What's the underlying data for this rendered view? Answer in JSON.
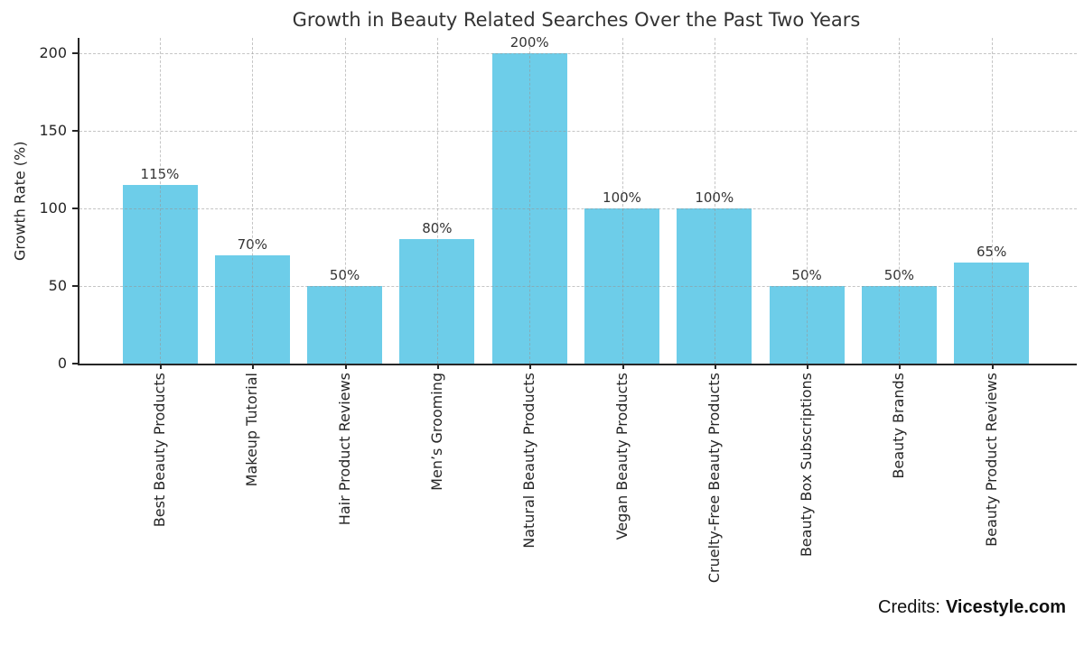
{
  "chart_data": {
    "type": "bar",
    "title": "Growth in Beauty Related Searches Over the Past Two Years",
    "ylabel": "Growth Rate (%)",
    "xlabel": "",
    "categories": [
      "Best Beauty Products",
      "Makeup Tutorial",
      "Hair Product Reviews",
      "Men’s Grooming",
      "Natural Beauty Products",
      "Vegan Beauty Products",
      "Cruelty-Free Beauty Products",
      "Beauty Box Subscriptions",
      "Beauty Brands",
      "Beauty Product Reviews"
    ],
    "values": [
      115,
      70,
      50,
      80,
      200,
      100,
      100,
      50,
      50,
      65
    ],
    "bar_labels": [
      "115%",
      "70%",
      "50%",
      "80%",
      "200%",
      "100%",
      "100%",
      "50%",
      "50%",
      "65%"
    ],
    "yticks": [
      0,
      50,
      100,
      150,
      200
    ],
    "ylim": [
      0,
      210
    ],
    "grid": true,
    "legend": "none",
    "colors": {
      "bar": "#6DCDE9",
      "grid": "#969696",
      "spine": "#262626",
      "text": "#2b2b2b"
    }
  },
  "footer": {
    "credits_label": "Credits:",
    "credits_brand": "Vicestyle.com"
  }
}
